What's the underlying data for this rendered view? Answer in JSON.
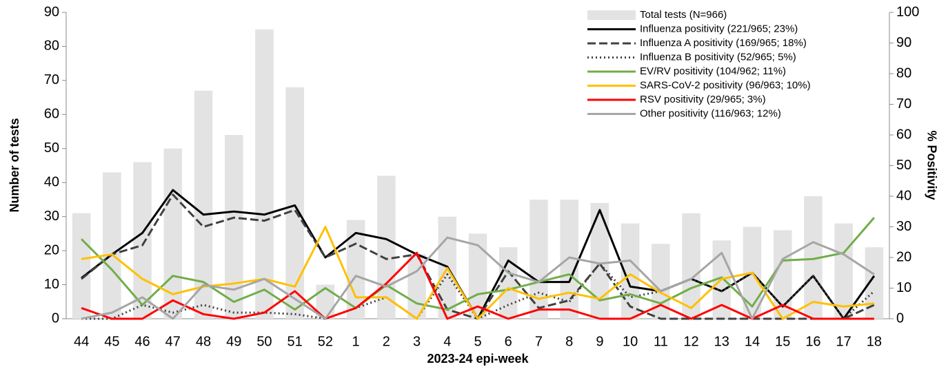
{
  "chart_data": {
    "type": "bar-line",
    "x_label": "2023-24 epi-week",
    "y_label": "Number of tests",
    "y2_label": "% Positivity",
    "categories": [
      "44",
      "45",
      "46",
      "47",
      "48",
      "49",
      "50",
      "51",
      "52",
      "1",
      "2",
      "3",
      "4",
      "5",
      "6",
      "7",
      "8",
      "9",
      "10",
      "11",
      "12",
      "13",
      "14",
      "15",
      "16",
      "17",
      "18"
    ],
    "ylim": [
      0,
      90
    ],
    "yticks": [
      0,
      10,
      20,
      30,
      40,
      50,
      60,
      70,
      80,
      90
    ],
    "y2lim": [
      0,
      100
    ],
    "y2ticks": [
      0,
      10,
      20,
      30,
      40,
      50,
      60,
      70,
      80,
      90,
      100
    ],
    "legend": "top-right",
    "series": [
      {
        "name": "Total tests (N=966)",
        "type": "bar",
        "color": "#e3e3e3",
        "axis": "y",
        "values": [
          31,
          43,
          46,
          50,
          67,
          54,
          85,
          68,
          10,
          29,
          42,
          19,
          30,
          25,
          21,
          35,
          35,
          34,
          28,
          22,
          31,
          23,
          27,
          26,
          36,
          28,
          21
        ]
      },
      {
        "name": "Influenza positivity (221/965; 23%)",
        "type": "line",
        "color": "#000000",
        "dash": "solid",
        "axis": "y2",
        "values": [
          13.3,
          21,
          28,
          42,
          34,
          35,
          34,
          37,
          20,
          28,
          26,
          21,
          17,
          0,
          19,
          12,
          12,
          35.5,
          10.5,
          9,
          13,
          9,
          15,
          4,
          14,
          0,
          14
        ]
      },
      {
        "name": "Influenza A positivity (169/965; 18%)",
        "type": "line",
        "color": "#404040",
        "dash": "dashed",
        "axis": "y2",
        "values": [
          13,
          21,
          24,
          40.5,
          30,
          33,
          32,
          35.5,
          20,
          24.5,
          19.5,
          21,
          3,
          0,
          15.5,
          3.5,
          6,
          18,
          4,
          0,
          0,
          0,
          0,
          0,
          0,
          0,
          4.5
        ]
      },
      {
        "name": "Influenza B positivity (52/965; 5%)",
        "type": "line",
        "color": "#404040",
        "dash": "dotted",
        "axis": "y2",
        "values": [
          0,
          0,
          4.5,
          2,
          4.5,
          2,
          2,
          1.5,
          0,
          3.5,
          7,
          0,
          14.5,
          0,
          4.5,
          8.5,
          5.5,
          18,
          7,
          9,
          13,
          9,
          15,
          4,
          14,
          0,
          9
        ]
      },
      {
        "name": "EV/RV positivity (104/962; 11%)",
        "type": "line",
        "color": "#70ad47",
        "dash": "solid",
        "axis": "y2",
        "values": [
          26,
          16,
          4.5,
          14,
          12,
          5.5,
          9.5,
          3,
          10,
          3.5,
          11,
          5,
          3,
          8,
          9.5,
          12,
          14.5,
          6,
          8,
          5,
          10,
          13.5,
          4,
          19,
          19.5,
          21.5,
          33
        ]
      },
      {
        "name": "SARS-CoV-2 positivity (96/963; 10%)",
        "type": "line",
        "color": "#ffc000",
        "dash": "solid",
        "axis": "y2",
        "values": [
          19.5,
          21,
          13,
          8,
          10.5,
          11.5,
          13,
          10.5,
          30,
          7,
          7,
          0,
          16.5,
          0,
          10,
          6.5,
          8.5,
          6.5,
          14.5,
          8.5,
          3.5,
          13,
          15,
          0,
          5.5,
          4,
          5
        ]
      },
      {
        "name": "RSV positivity (29/965; 3%)",
        "type": "line",
        "color": "#ff0000",
        "dash": "solid",
        "axis": "y2",
        "values": [
          3.5,
          0,
          0,
          6,
          1.5,
          0,
          2,
          9,
          0,
          3.5,
          11.5,
          21.5,
          0,
          4,
          0,
          3,
          3,
          0,
          0,
          4.5,
          0,
          4.5,
          0,
          4.5,
          0,
          0,
          0
        ]
      },
      {
        "name": "Other positivity (116/963; 12%)",
        "type": "line",
        "color": "#a5a5a5",
        "dash": "solid",
        "axis": "y2",
        "values": [
          0,
          2,
          7,
          0,
          11,
          9.5,
          13,
          6.5,
          0,
          14,
          10.5,
          15.5,
          26.5,
          24,
          15,
          12,
          20,
          18,
          19,
          9,
          13,
          21.5,
          0,
          19.5,
          25,
          21,
          14.5
        ]
      }
    ]
  }
}
